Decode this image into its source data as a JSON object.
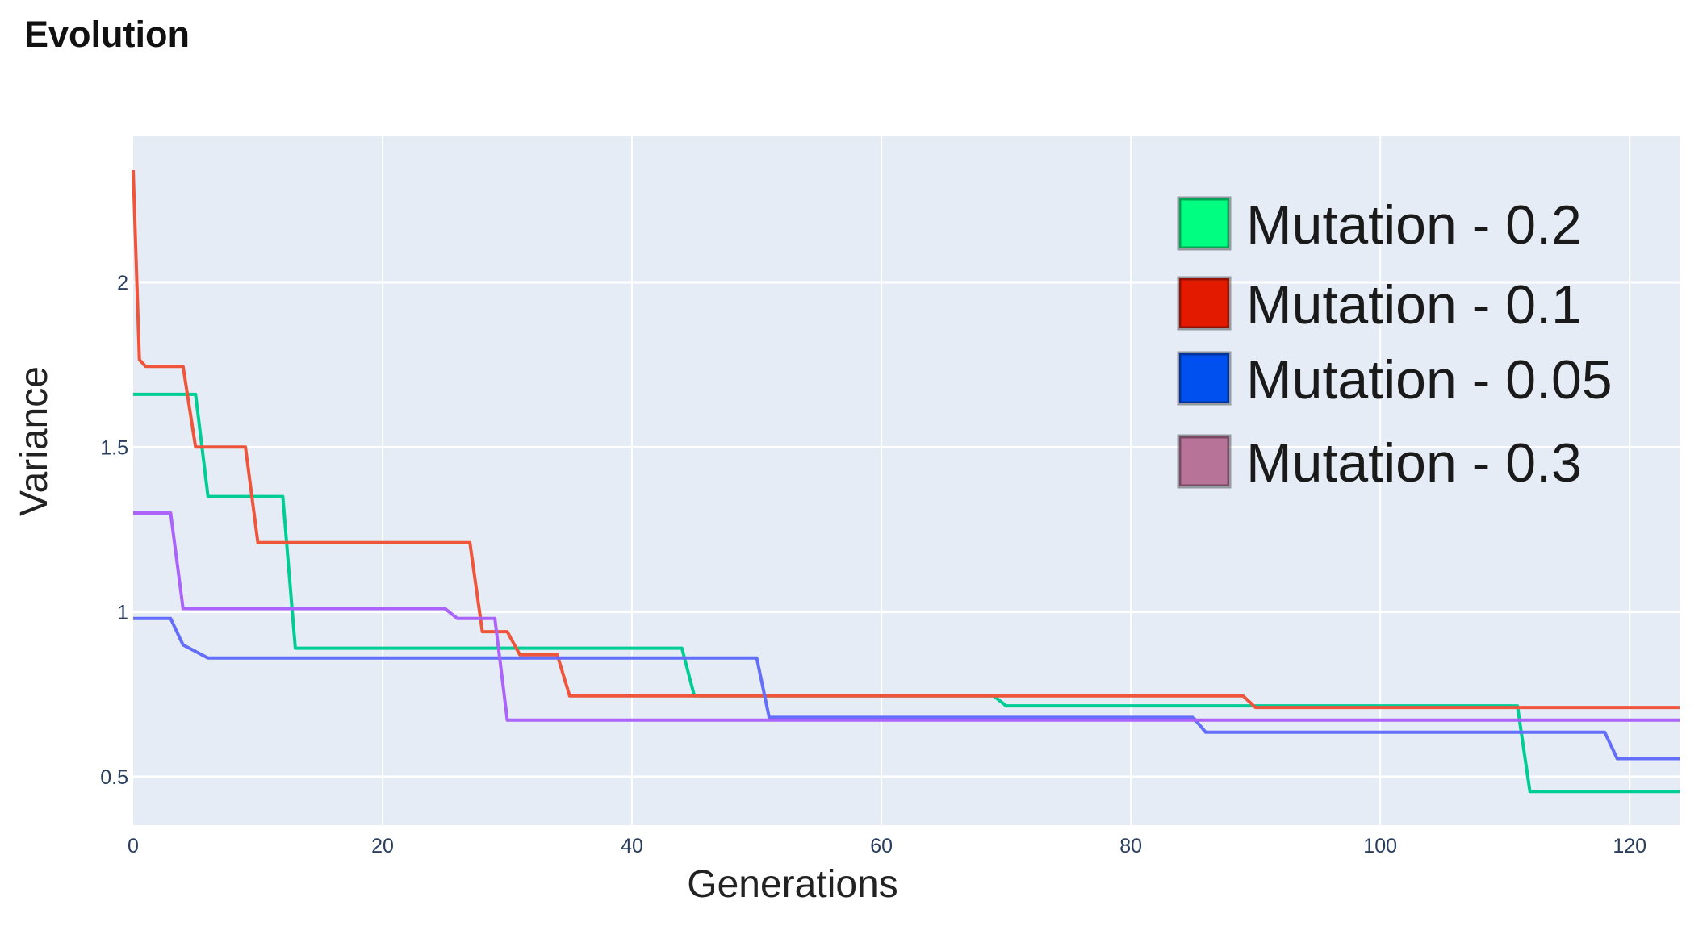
{
  "chart_data": {
    "type": "line",
    "title": "Evolution",
    "xlabel": "Generations",
    "ylabel": "Variance",
    "xlim": [
      0,
      124
    ],
    "ylim": [
      0.353,
      2.443
    ],
    "xticks": [
      0,
      20,
      40,
      60,
      80,
      100,
      120
    ],
    "yticks": [
      0.5,
      1,
      1.5,
      2
    ],
    "xtick_labels": [
      "0",
      "20",
      "40",
      "60",
      "80",
      "100",
      "120"
    ],
    "ytick_labels": [
      "0.5",
      "1",
      "1.5",
      "2"
    ],
    "grid": true,
    "legend_position": "top-right",
    "plot_bgcolor": "#e5ecf6",
    "series": [
      {
        "name": "Mutation - 0.2",
        "line_color": "#00cc96",
        "legend_color": "#00ff80",
        "points": [
          [
            0,
            1.66
          ],
          [
            5,
            1.66
          ],
          [
            6,
            1.35
          ],
          [
            12,
            1.35
          ],
          [
            13,
            0.89
          ],
          [
            44,
            0.89
          ],
          [
            45,
            0.745
          ],
          [
            69,
            0.745
          ],
          [
            70,
            0.715
          ],
          [
            111,
            0.715
          ],
          [
            112,
            0.455
          ],
          [
            124,
            0.455
          ]
        ]
      },
      {
        "name": "Mutation - 0.1",
        "line_color": "#ef553b",
        "legend_color": "#e31a00",
        "points": [
          [
            0,
            2.34
          ],
          [
            0.5,
            1.765
          ],
          [
            1,
            1.745
          ],
          [
            4,
            1.745
          ],
          [
            5,
            1.5
          ],
          [
            9,
            1.5
          ],
          [
            10,
            1.21
          ],
          [
            27,
            1.21
          ],
          [
            28,
            0.94
          ],
          [
            30,
            0.94
          ],
          [
            31,
            0.87
          ],
          [
            34,
            0.87
          ],
          [
            35,
            0.745
          ],
          [
            89,
            0.745
          ],
          [
            90,
            0.71
          ],
          [
            124,
            0.71
          ]
        ]
      },
      {
        "name": "Mutation - 0.05",
        "line_color": "#636efa",
        "legend_color": "#0050f0",
        "points": [
          [
            0,
            0.98
          ],
          [
            3,
            0.98
          ],
          [
            4,
            0.9
          ],
          [
            6,
            0.86
          ],
          [
            50,
            0.86
          ],
          [
            51,
            0.68
          ],
          [
            85,
            0.68
          ],
          [
            86,
            0.635
          ],
          [
            118,
            0.635
          ],
          [
            119,
            0.555
          ],
          [
            124,
            0.555
          ]
        ]
      },
      {
        "name": "Mutation - 0.3",
        "line_color": "#ab63fa",
        "legend_color": "#b87399",
        "points": [
          [
            0,
            1.3
          ],
          [
            3,
            1.3
          ],
          [
            4,
            1.01
          ],
          [
            25,
            1.01
          ],
          [
            26,
            0.98
          ],
          [
            29,
            0.98
          ],
          [
            30,
            0.672
          ],
          [
            124,
            0.672
          ]
        ]
      }
    ]
  }
}
